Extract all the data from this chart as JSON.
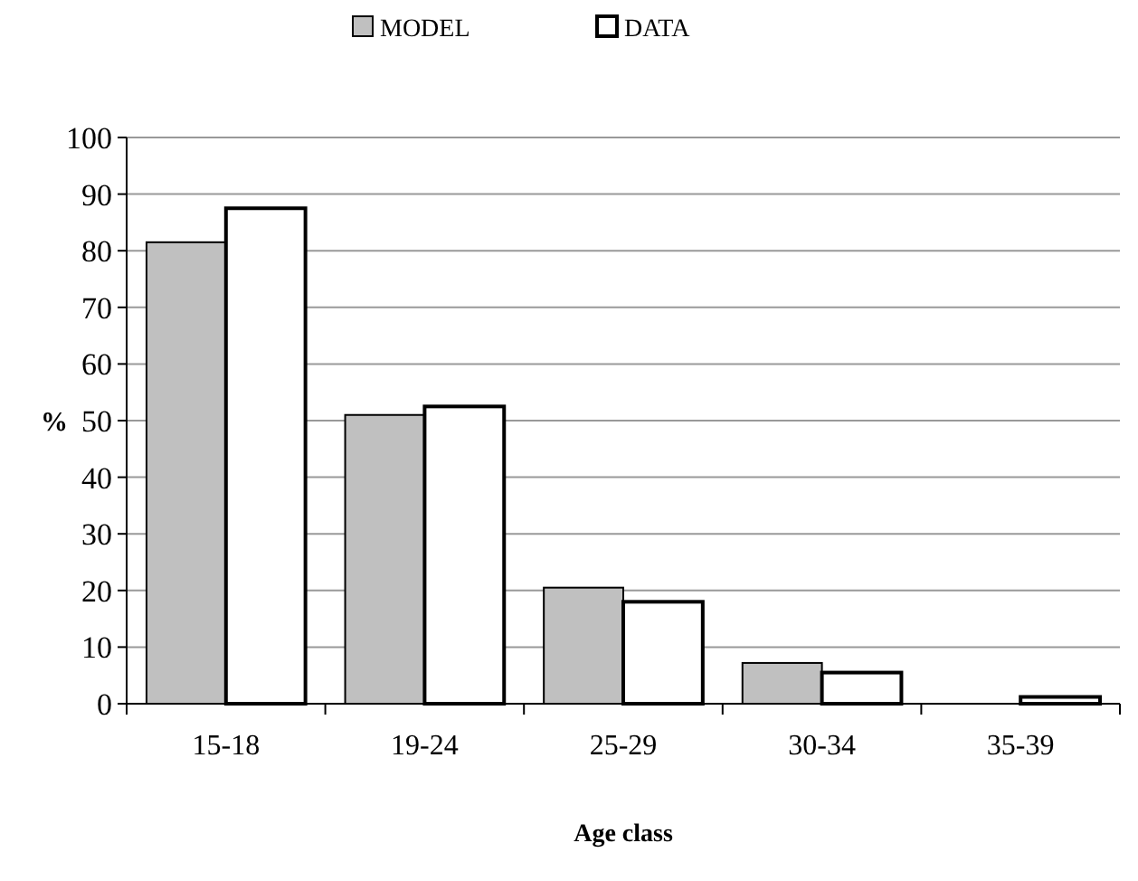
{
  "chart_data": {
    "type": "bar",
    "xlabel": "Age class",
    "ylabel": "%",
    "categories": [
      "15-18",
      "19-24",
      "25-29",
      "30-34",
      "35-39"
    ],
    "series": [
      {
        "name": "MODEL",
        "color": "#c0c0c0",
        "values": [
          81.5,
          51,
          20.5,
          7.2,
          0
        ]
      },
      {
        "name": "DATA",
        "color": "#ffffff",
        "values": [
          87.5,
          52.5,
          18,
          5.5,
          1.2
        ]
      }
    ],
    "ylim": [
      0,
      100
    ],
    "yticks": [
      0,
      10,
      20,
      30,
      40,
      50,
      60,
      70,
      80,
      90,
      100
    ],
    "grid": "y",
    "legend": "top"
  }
}
